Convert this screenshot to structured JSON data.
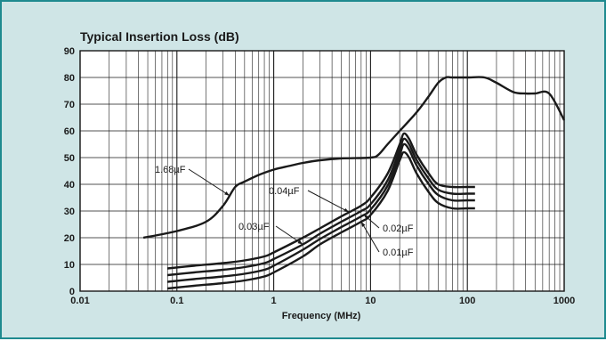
{
  "chart_data": {
    "type": "line",
    "title": "Typical Insertion Loss  (dB)",
    "xlabel": "Frequency (MHz)",
    "ylabel": "",
    "xscale": "log",
    "xlim": [
      0.01,
      1000
    ],
    "ylim": [
      0,
      90
    ],
    "x_ticks": [
      "0.01",
      "0.1",
      "1",
      "10",
      "100",
      "1000"
    ],
    "y_ticks": [
      "0",
      "10",
      "20",
      "30",
      "40",
      "50",
      "60",
      "70",
      "80",
      "90"
    ],
    "grid": true,
    "colors": {
      "panel_bg": "#cfe5e6",
      "panel_border": "#1e8a8f",
      "plot_bg": "#ffffff",
      "line": "#1a1a1a",
      "grid": "#1a1a1a"
    },
    "series": [
      {
        "name": "1.68µF",
        "x": [
          0.045,
          0.1,
          0.2,
          0.3,
          0.4,
          0.5,
          0.7,
          1,
          1.5,
          2,
          3,
          5,
          10,
          12,
          15,
          20,
          30,
          40,
          50,
          60,
          70,
          100,
          150,
          200,
          300,
          400,
          500,
          700,
          1000
        ],
        "y": [
          20,
          22.5,
          26,
          32,
          39,
          41,
          43.5,
          45.5,
          47,
          48,
          49,
          49.7,
          50,
          51,
          55,
          60,
          67,
          73,
          78,
          80,
          80,
          80,
          80,
          78,
          74.5,
          74,
          74,
          74,
          64
        ]
      },
      {
        "name": "0.04µF",
        "x": [
          0.08,
          0.15,
          0.3,
          0.5,
          0.8,
          1,
          2,
          3,
          5,
          8,
          10,
          15,
          20,
          22,
          25,
          30,
          40,
          50,
          70,
          100,
          120
        ],
        "y": [
          8.5,
          9.5,
          10.5,
          11.5,
          13,
          14.5,
          20,
          23.5,
          28,
          32,
          35,
          44,
          55,
          59,
          57,
          51,
          44,
          40,
          39,
          39,
          39
        ]
      },
      {
        "name": "0.03µF",
        "x": [
          0.08,
          0.15,
          0.3,
          0.5,
          0.8,
          1,
          2,
          3,
          5,
          8,
          10,
          15,
          20,
          22,
          25,
          30,
          40,
          50,
          70,
          100,
          120
        ],
        "y": [
          6,
          7,
          8,
          9,
          10.5,
          12,
          17.5,
          21.5,
          26,
          30,
          32.5,
          41.5,
          53,
          57,
          55,
          49,
          42,
          38,
          36.5,
          36.5,
          36.5
        ]
      },
      {
        "name": "0.02µF",
        "x": [
          0.08,
          0.15,
          0.3,
          0.5,
          0.8,
          1,
          2,
          3,
          5,
          8,
          10,
          15,
          20,
          22,
          25,
          30,
          40,
          50,
          70,
          100,
          120
        ],
        "y": [
          3.5,
          4.5,
          5.5,
          6.5,
          8,
          9.5,
          15.5,
          19.5,
          24,
          28,
          30.5,
          39.5,
          51,
          55,
          53,
          47,
          40,
          36,
          34,
          34,
          34
        ]
      },
      {
        "name": "0.01µF",
        "x": [
          0.08,
          0.15,
          0.3,
          0.5,
          0.8,
          1,
          2,
          3,
          5,
          8,
          10,
          15,
          20,
          22,
          25,
          30,
          40,
          50,
          70,
          100,
          120
        ],
        "y": [
          1,
          2,
          3,
          4,
          5.5,
          7,
          13,
          17.5,
          22,
          26,
          28.5,
          37.5,
          49,
          52,
          50,
          44,
          37,
          33,
          31,
          31,
          31
        ]
      }
    ],
    "annotations": [
      {
        "text": "1.68µF",
        "series": "1.68µF",
        "at_x": 0.35
      },
      {
        "text": "0.04µF",
        "series": "0.04µF",
        "at_x": 6.0
      },
      {
        "text": "0.03µF",
        "series": "0.03µF",
        "at_x": 2.0
      },
      {
        "text": "0.02µF",
        "series": "0.02µF",
        "at_x": 8.5
      },
      {
        "text": "0.01µF",
        "series": "0.01µF",
        "at_x": 8.0
      }
    ]
  }
}
